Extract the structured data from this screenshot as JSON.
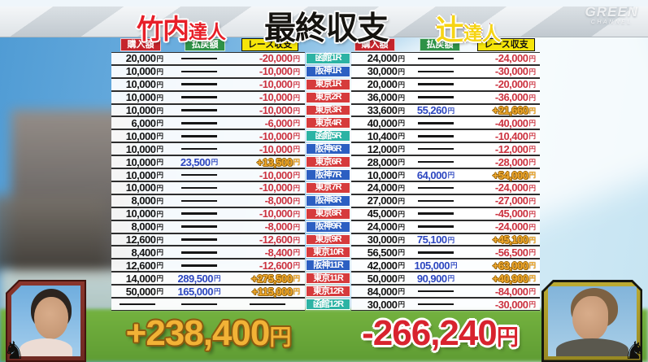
{
  "header": {
    "left_player_name": "竹内",
    "left_player_title": "達人",
    "center_title": "最終収支",
    "right_player_name": "辻",
    "right_player_title": "達人",
    "watermark_line1": "GREEN",
    "watermark_line2": "CHANNEL"
  },
  "table": {
    "column_headers": {
      "purchase": "購入額",
      "payout": "払戻額",
      "balance": "レース収支"
    },
    "currency_suffix": "円",
    "races": [
      {
        "label": "函館1R",
        "venue": "hakodate",
        "left": [
          "20,000",
          null,
          "-20,000"
        ],
        "right": [
          "24,000",
          null,
          "-24,000"
        ]
      },
      {
        "label": "阪神1R",
        "venue": "hanshin",
        "left": [
          "10,000",
          null,
          "-10,000"
        ],
        "right": [
          "30,000",
          null,
          "-30,000"
        ]
      },
      {
        "label": "東京1R",
        "venue": "tokyo",
        "left": [
          "10,000",
          null,
          "-10,000"
        ],
        "right": [
          "20,000",
          null,
          "-20,000"
        ]
      },
      {
        "label": "東京2R",
        "venue": "tokyo",
        "left": [
          "10,000",
          null,
          "-10,000"
        ],
        "right": [
          "36,000",
          null,
          "-36,000"
        ]
      },
      {
        "label": "東京3R",
        "venue": "tokyo",
        "left": [
          "10,000",
          null,
          "-10,000"
        ],
        "right": [
          "33,600",
          "55,260",
          "+21,660"
        ]
      },
      {
        "label": "東京4R",
        "venue": "tokyo",
        "left": [
          "6,000",
          null,
          "-6,000"
        ],
        "right": [
          "40,000",
          null,
          "-40,000"
        ]
      },
      {
        "label": "函館5R",
        "venue": "hakodate",
        "left": [
          "10,000",
          null,
          "-10,000"
        ],
        "right": [
          "10,400",
          null,
          "-10,400"
        ]
      },
      {
        "label": "阪神6R",
        "venue": "hanshin",
        "left": [
          "10,000",
          null,
          "-10,000"
        ],
        "right": [
          "12,000",
          null,
          "-12,000"
        ]
      },
      {
        "label": "東京6R",
        "venue": "tokyo",
        "left": [
          "10,000",
          "23,500",
          "+13,500"
        ],
        "right": [
          "28,000",
          null,
          "-28,000"
        ]
      },
      {
        "label": "阪神7R",
        "venue": "hanshin",
        "left": [
          "10,000",
          null,
          "-10,000"
        ],
        "right": [
          "10,000",
          "64,000",
          "+54,000"
        ]
      },
      {
        "label": "東京7R",
        "venue": "tokyo",
        "left": [
          "10,000",
          null,
          "-10,000"
        ],
        "right": [
          "24,000",
          null,
          "-24,000"
        ]
      },
      {
        "label": "阪神8R",
        "venue": "hanshin",
        "left": [
          "8,000",
          null,
          "-8,000"
        ],
        "right": [
          "27,000",
          null,
          "-27,000"
        ]
      },
      {
        "label": "東京8R",
        "venue": "tokyo",
        "left": [
          "10,000",
          null,
          "-10,000"
        ],
        "right": [
          "45,000",
          null,
          "-45,000"
        ]
      },
      {
        "label": "阪神9R",
        "venue": "hanshin",
        "left": [
          "8,000",
          null,
          "-8,000"
        ],
        "right": [
          "24,000",
          null,
          "-24,000"
        ]
      },
      {
        "label": "東京9R",
        "venue": "tokyo",
        "left": [
          "12,600",
          null,
          "-12,600"
        ],
        "right": [
          "30,000",
          "75,100",
          "+45,100"
        ]
      },
      {
        "label": "東京10R",
        "venue": "tokyo",
        "left": [
          "8,400",
          null,
          "-8,400"
        ],
        "right": [
          "56,500",
          null,
          "-56,500"
        ]
      },
      {
        "label": "阪神11R",
        "venue": "hanshin",
        "left": [
          "12,600",
          null,
          "-12,600"
        ],
        "right": [
          "42,000",
          "105,000",
          "+63,000"
        ]
      },
      {
        "label": "東京11R",
        "venue": "tokyo",
        "left": [
          "14,000",
          "289,500",
          "+275,500"
        ],
        "right": [
          "50,000",
          "90,900",
          "+40,900"
        ]
      },
      {
        "label": "東京12R",
        "venue": "tokyo",
        "left": [
          "50,000",
          "165,000",
          "+115,000"
        ],
        "right": [
          "84,000",
          null,
          "-84,000"
        ]
      },
      {
        "label": "函館12R",
        "venue": "hakodate",
        "left": [
          null,
          null,
          null
        ],
        "right": [
          "30,000",
          null,
          "-30,000"
        ]
      }
    ]
  },
  "totals": {
    "left_total": "+238,400",
    "right_total": "-266,240",
    "suffix": "円"
  },
  "icons": {
    "horse": "♞"
  },
  "colors": {
    "tokyo_badge": "#d63b3c",
    "hanshin_badge": "#2c5fc2",
    "hakodate_badge": "#2cb3a4",
    "purchase_header_bg": "#c5242c",
    "payout_header_bg": "#2f9247",
    "balance_header_bg": "#f6e50a",
    "negative": "#cc3340",
    "positive": "#f2a92c",
    "payout_value": "#2d47c0",
    "left_total": "#f2b236",
    "right_total": "#d8232e"
  }
}
